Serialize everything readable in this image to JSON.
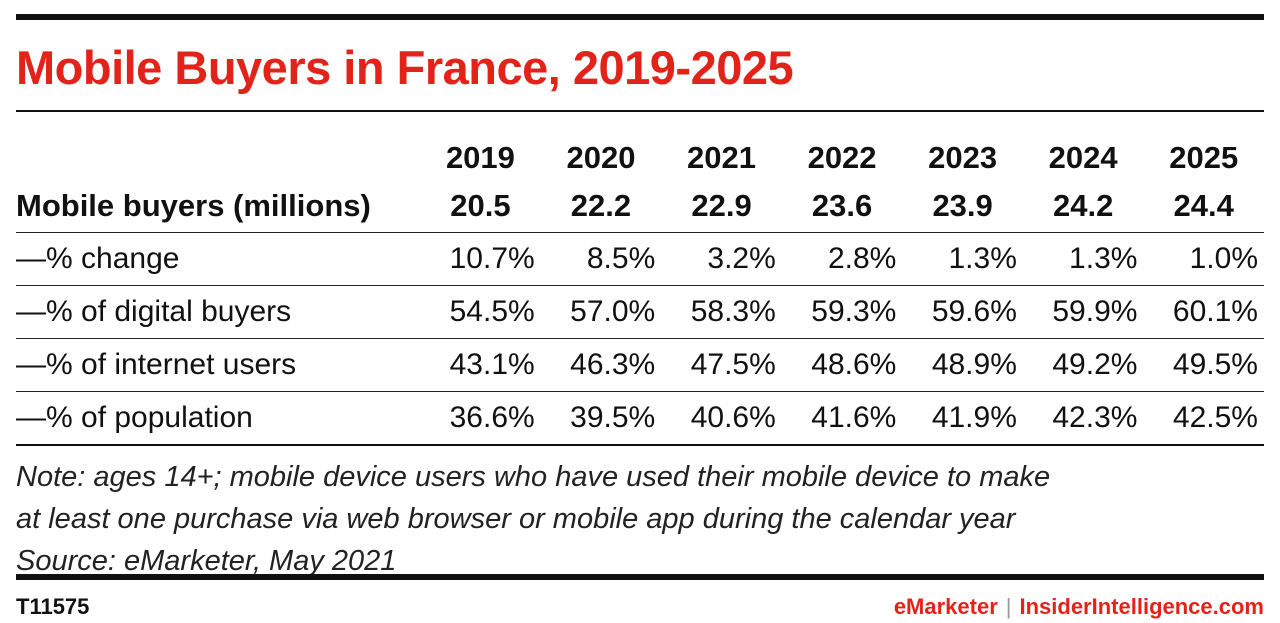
{
  "chart_data": {
    "type": "table",
    "title": "Mobile Buyers in France, 2019-2025",
    "columns": [
      "2019",
      "2020",
      "2021",
      "2022",
      "2023",
      "2024",
      "2025"
    ],
    "rows": [
      {
        "label": "Mobile buyers (millions)",
        "values": [
          "20.5",
          "22.2",
          "22.9",
          "23.6",
          "23.9",
          "24.2",
          "24.4"
        ]
      },
      {
        "label": "—% change",
        "values": [
          "10.7%",
          "8.5%",
          "3.2%",
          "2.8%",
          "1.3%",
          "1.3%",
          "1.0%"
        ]
      },
      {
        "label": "—% of digital buyers",
        "values": [
          "54.5%",
          "57.0%",
          "58.3%",
          "59.3%",
          "59.6%",
          "59.9%",
          "60.1%"
        ]
      },
      {
        "label": "—% of internet users",
        "values": [
          "43.1%",
          "46.3%",
          "47.5%",
          "48.6%",
          "48.9%",
          "49.2%",
          "49.5%"
        ]
      },
      {
        "label": "—% of population",
        "values": [
          "36.6%",
          "39.5%",
          "40.6%",
          "41.6%",
          "41.9%",
          "42.3%",
          "42.5%"
        ]
      }
    ],
    "note_lines": [
      "Note: ages 14+; mobile device users who have used their mobile device to make",
      "at least one purchase via web browser or mobile app during the calendar year",
      "Source: eMarketer, May 2021"
    ]
  },
  "footer": {
    "chart_id": "T11575",
    "brand_primary": "eMarketer",
    "brand_separator": "|",
    "brand_secondary": "InsiderIntelligence.com"
  },
  "colors": {
    "title": "#e2231a",
    "brand": "#e2231a",
    "rules": "#111111"
  }
}
